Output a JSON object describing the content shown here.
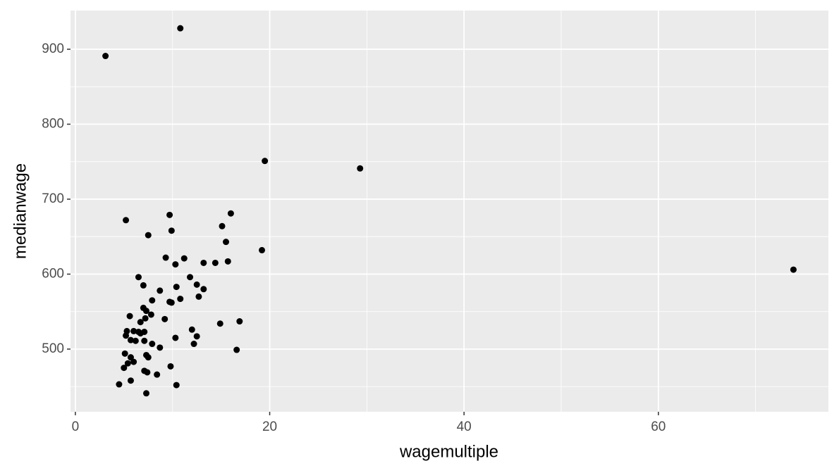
{
  "chart_data": {
    "type": "scatter",
    "x_label": "wagemultiple",
    "y_label": "medianwage",
    "color": "#000000",
    "grid": true,
    "xlim": [
      -0.5,
      77.5
    ],
    "ylim": [
      416.4,
      951.6
    ],
    "xticks": [
      0,
      20,
      40,
      60
    ],
    "yticks": [
      500,
      600,
      700,
      800,
      900
    ],
    "x_minor_grid": [
      10,
      30,
      50,
      70
    ],
    "y_minor_grid": [
      450,
      550,
      650,
      750,
      850
    ],
    "x": [
      3.1,
      10.8,
      19.5,
      29.3,
      73.9,
      5.2,
      9.7,
      16.0,
      7.5,
      9.9,
      15.1,
      15.5,
      19.2,
      9.3,
      11.2,
      10.3,
      13.2,
      14.4,
      15.7,
      6.5,
      11.8,
      7.0,
      12.5,
      13.2,
      8.7,
      10.4,
      12.7,
      7.9,
      9.7,
      9.9,
      10.8,
      7.0,
      7.3,
      7.8,
      7.2,
      5.6,
      9.2,
      6.7,
      16.9,
      14.9,
      5.3,
      6.0,
      6.5,
      7.1,
      12.0,
      5.2,
      6.7,
      5.7,
      6.2,
      7.1,
      10.3,
      12.5,
      7.9,
      12.2,
      8.7,
      16.6,
      5.1,
      7.3,
      7.5,
      5.7,
      6.0,
      5.4,
      9.8,
      5.0,
      7.1,
      7.4,
      8.4,
      5.7,
      4.5,
      10.4,
      7.3
    ],
    "values": [
      891,
      928,
      751,
      741,
      606,
      672,
      679,
      681,
      652,
      658,
      664,
      643,
      632,
      622,
      621,
      613,
      615,
      615,
      617,
      596,
      596,
      585,
      586,
      580,
      578,
      583,
      570,
      565,
      563,
      562,
      567,
      555,
      551,
      546,
      541,
      544,
      540,
      536,
      537,
      534,
      524,
      524,
      523,
      523,
      526,
      518,
      521,
      512,
      511,
      511,
      515,
      517,
      507,
      507,
      502,
      499,
      494,
      492,
      489,
      489,
      483,
      481,
      477,
      475,
      471,
      469,
      466,
      458,
      453,
      452,
      441
    ]
  }
}
